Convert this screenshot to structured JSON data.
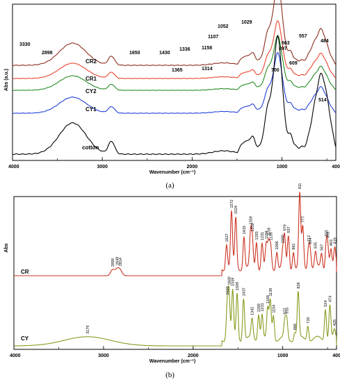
{
  "chart_data": [
    {
      "panel": "(a)",
      "type": "line",
      "xlabel": "Wavenumber (cm⁻¹)",
      "ylabel": "Abs (a.u.)",
      "xlim": [
        4000,
        400
      ],
      "x_ticks": [
        "4000",
        "3000",
        "2000",
        "1000",
        "400"
      ],
      "grid": false,
      "colors": {
        "CR2": "#8b2d1e",
        "CR1": "#e8442d",
        "CY2": "#228b22",
        "CY1": "#1f3fd8",
        "cotton": "#000000"
      },
      "series": [
        {
          "name": "CR2",
          "offset": 4.0,
          "peaks": [
            3330,
            2898,
            1650,
            1430,
            1336,
            1158,
            1107,
            1052,
            1029,
            897,
            663,
            557,
            484
          ]
        },
        {
          "name": "CR1",
          "offset": 3.0,
          "peaks": [
            1365,
            1314,
            700,
            609
          ]
        },
        {
          "name": "CY2",
          "offset": 2.0,
          "peaks": []
        },
        {
          "name": "CY1",
          "offset": 1.0,
          "peaks": [
            514
          ]
        },
        {
          "name": "cotton",
          "offset": 0.0,
          "peaks": []
        }
      ],
      "peak_labels": [
        {
          "text": "3330",
          "x": 3330,
          "series": "CR2"
        },
        {
          "text": "2898",
          "x": 2898,
          "series": "CR2"
        },
        {
          "text": "1650",
          "x": 1650,
          "series": "CR2"
        },
        {
          "text": "1430",
          "x": 1430,
          "series": "CR2"
        },
        {
          "text": "1336",
          "x": 1336,
          "series": "CR2"
        },
        {
          "text": "1158",
          "x": 1158,
          "series": "CR2"
        },
        {
          "text": "1107",
          "x": 1107,
          "series": "CR2"
        },
        {
          "text": "1052",
          "x": 1052,
          "series": "CR2"
        },
        {
          "text": "1029",
          "x": 1029,
          "series": "CR2"
        },
        {
          "text": "897",
          "x": 897,
          "series": "CR2"
        },
        {
          "text": "663",
          "x": 663,
          "series": "CR2"
        },
        {
          "text": "557",
          "x": 557,
          "series": "CR2"
        },
        {
          "text": "484",
          "x": 484,
          "series": "CR2"
        },
        {
          "text": "1365",
          "x": 1365,
          "series": "CR1"
        },
        {
          "text": "1314",
          "x": 1314,
          "series": "CR1"
        },
        {
          "text": "700",
          "x": 700,
          "series": "CR1"
        },
        {
          "text": "609",
          "x": 609,
          "series": "CR1"
        },
        {
          "text": "514",
          "x": 514,
          "series": "CY1"
        }
      ]
    },
    {
      "panel": "(b)",
      "type": "line",
      "xlabel": "Wavenumber (cm⁻¹)",
      "ylabel": "Abs",
      "xlim": [
        4000,
        400
      ],
      "x_ticks": [
        "4000",
        "3000",
        "2000",
        "1000",
        "400"
      ],
      "grid": false,
      "colors": {
        "CR": "#cc3322",
        "CY": "#8a9a1e"
      },
      "series": [
        {
          "name": "CR",
          "peaks": [
            2899,
            2849,
            2814,
            1627,
            1572,
            1524,
            1433,
            1359,
            1339,
            1293,
            1231,
            1184,
            1158,
            1135,
            1066,
            1000,
            979,
            937,
            881,
            811,
            777,
            712,
            694,
            635,
            567,
            515,
            498,
            463,
            419
          ]
        },
        {
          "name": "CY",
          "peaks": [
            3179,
            1620,
            1600,
            1559,
            1509,
            1437,
            1342,
            1269,
            1231,
            1168,
            1139,
            1104,
            977,
            955,
            866,
            828,
            720,
            524,
            474,
            425
          ]
        }
      ]
    }
  ],
  "captions": {
    "a": "(a)",
    "b": "(b)"
  }
}
